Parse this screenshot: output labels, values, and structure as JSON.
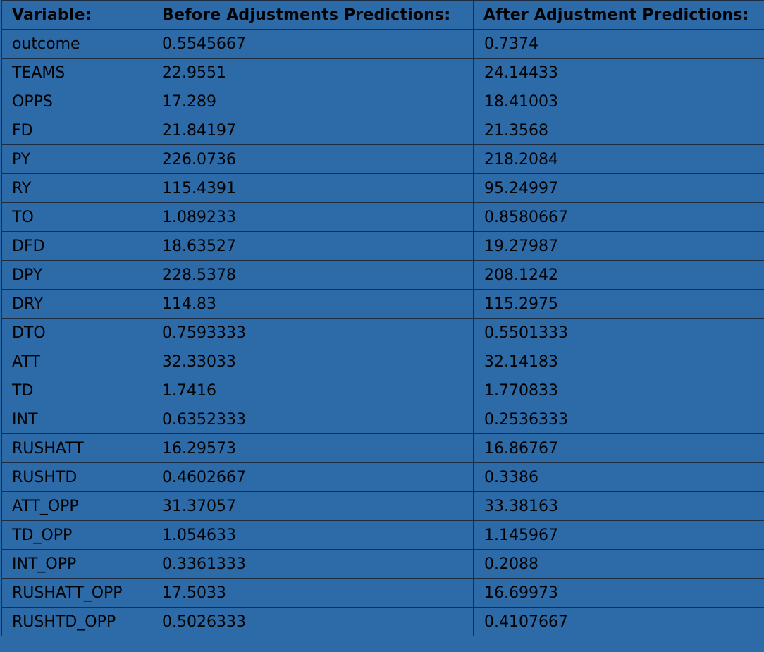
{
  "table": {
    "headers": [
      "Variable:",
      "Before Adjustments Predictions:",
      "After Adjustment Predictions:"
    ],
    "rows": [
      [
        "outcome",
        "0.5545667",
        "0.7374"
      ],
      [
        "TEAMS",
        "22.9551",
        "24.14433"
      ],
      [
        "OPPS",
        "17.289",
        "18.41003"
      ],
      [
        "FD",
        "21.84197",
        "21.3568"
      ],
      [
        "PY",
        "226.0736",
        "218.2084"
      ],
      [
        "RY",
        "115.4391",
        "95.24997"
      ],
      [
        "TO",
        "1.089233",
        "0.8580667"
      ],
      [
        "DFD",
        "18.63527",
        "19.27987"
      ],
      [
        "DPY",
        "228.5378",
        "208.1242"
      ],
      [
        "DRY",
        "114.83",
        "115.2975"
      ],
      [
        "DTO",
        "0.7593333",
        "0.5501333"
      ],
      [
        "ATT",
        "32.33033",
        "32.14183"
      ],
      [
        "TD",
        "1.7416",
        "1.770833"
      ],
      [
        "INT",
        "0.6352333",
        "0.2536333"
      ],
      [
        "RUSHATT",
        "16.29573",
        "16.86767"
      ],
      [
        "RUSHTD",
        "0.4602667",
        "0.3386"
      ],
      [
        "ATT_OPP",
        "31.37057",
        "33.38163"
      ],
      [
        "TD_OPP",
        "1.054633",
        "1.145967"
      ],
      [
        "INT_OPP",
        "0.3361333",
        "0.2088"
      ],
      [
        "RUSHATT_OPP",
        "17.5033",
        "16.69973"
      ],
      [
        "RUSHTD_OPP",
        "0.5026333",
        "0.4107667"
      ]
    ]
  },
  "colors": {
    "cell_background": "#2c6aa8",
    "border": "#1c2d44",
    "text": "#000000"
  }
}
